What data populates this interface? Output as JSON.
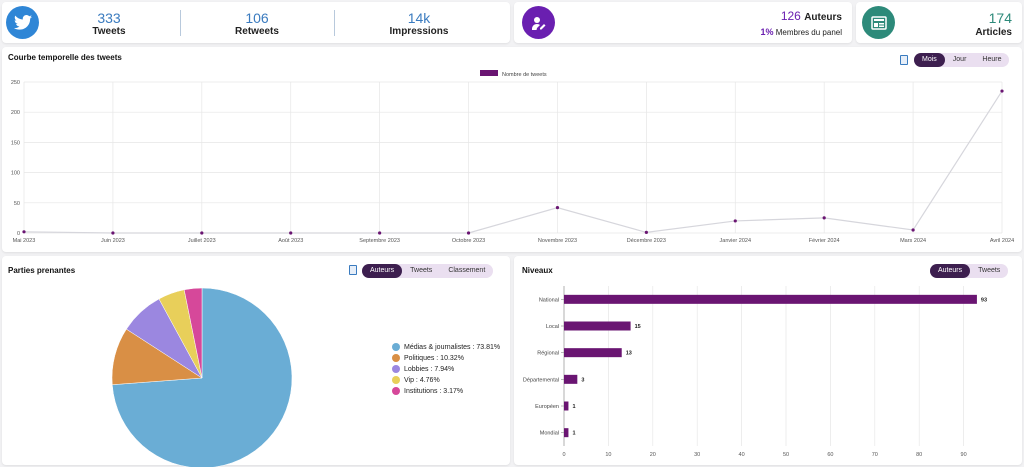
{
  "twitter_card": {
    "stats": [
      {
        "value": "333",
        "label": "Tweets"
      },
      {
        "value": "106",
        "label": "Retweets"
      },
      {
        "value": "14k",
        "label": "Impressions"
      }
    ]
  },
  "authors_card": {
    "value": "126",
    "label": "Auteurs",
    "percent": "1%",
    "percent_label": "Membres du panel"
  },
  "articles_card": {
    "value": "174",
    "label": "Articles"
  },
  "timeline": {
    "title": "Courbe temporelle des tweets",
    "toggle": [
      "Mois",
      "Jour",
      "Heure"
    ],
    "active": "Mois",
    "chart_data": {
      "type": "line",
      "legend": "Nombre de tweets",
      "color": "#6a1572",
      "x": [
        "Mai 2023",
        "Juin 2023",
        "Juillet 2023",
        "Août 2023",
        "Septembre 2023",
        "Octobre 2023",
        "Novembre 2023",
        "Décembre 2023",
        "Janvier 2024",
        "Février 2024",
        "Mars 2024",
        "Avril 2024"
      ],
      "values": [
        2,
        0,
        0,
        0,
        0,
        0,
        42,
        1,
        20,
        25,
        5,
        235
      ],
      "ylim": [
        0,
        250
      ],
      "yticks": [
        "0",
        "50",
        "100",
        "150",
        "200",
        "250"
      ]
    }
  },
  "stakeholders": {
    "title": "Parties prenantes",
    "toggle": [
      "Auteurs",
      "Tweets",
      "Classement"
    ],
    "active": "Auteurs",
    "chart_data": {
      "type": "pie",
      "slices": [
        {
          "label": "Médias & journalistes : 73.81%",
          "value": 73.81,
          "color": "#6aadd5"
        },
        {
          "label": "Politiques : 10.32%",
          "value": 10.32,
          "color": "#d98f45"
        },
        {
          "label": "Lobbies : 7.94%",
          "value": 7.94,
          "color": "#9b87e0"
        },
        {
          "label": "Vip : 4.76%",
          "value": 4.76,
          "color": "#e8cf5a"
        },
        {
          "label": "Institutions : 3.17%",
          "value": 3.17,
          "color": "#d6489a"
        }
      ]
    }
  },
  "levels": {
    "title": "Niveaux",
    "toggle": [
      "Auteurs",
      "Tweets"
    ],
    "active": "Auteurs",
    "chart_data": {
      "type": "bar",
      "orientation": "horizontal",
      "color": "#6a1572",
      "categories": [
        "National",
        "Local",
        "Régional",
        "Départemental",
        "Européen",
        "Mondial"
      ],
      "values": [
        93,
        15,
        13,
        3,
        1,
        1
      ],
      "xlim": [
        0,
        100
      ],
      "xticks": [
        "0",
        "10",
        "20",
        "30",
        "40",
        "50",
        "60",
        "70",
        "80",
        "90"
      ]
    }
  }
}
